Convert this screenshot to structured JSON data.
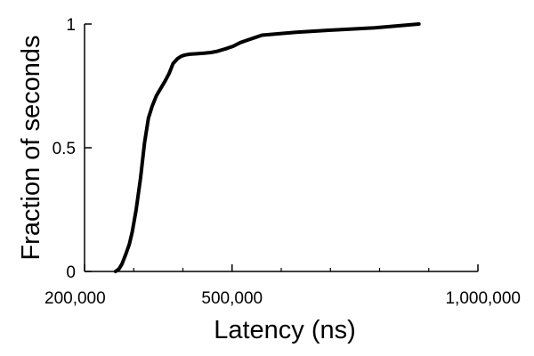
{
  "chart_data": {
    "type": "line",
    "title": "",
    "xlabel": "Latency (ns)",
    "ylabel": "Fraction of seconds",
    "xlim": [
      200000,
      1000000
    ],
    "ylim": [
      0,
      1
    ],
    "x_ticks": [
      {
        "value": 200000,
        "label": "200,000"
      },
      {
        "value": 500000,
        "label": "500,000"
      },
      {
        "value": 1000000,
        "label": "1,000,000"
      }
    ],
    "x_minor_ticks": [
      300000,
      400000,
      600000,
      700000,
      800000,
      900000
    ],
    "y_ticks": [
      {
        "value": 0,
        "label": "0"
      },
      {
        "value": 0.5,
        "label": "0.5"
      },
      {
        "value": 1,
        "label": "1"
      }
    ],
    "grid": false,
    "legend": "none",
    "line_color": "#000000",
    "series": [
      {
        "x": [
          263000,
          270000,
          276000,
          284000,
          291000,
          297000,
          305000,
          314000,
          322000,
          330000,
          338000,
          346000,
          355000,
          364000,
          372000,
          380000,
          389000,
          397000,
          404000,
          414000,
          428000,
          443000,
          457000,
          470000,
          487000,
          502000,
          517000,
          531000,
          546000,
          561000,
          590000,
          630000,
          700000,
          790000,
          880000
        ],
        "y": [
          0,
          0.01,
          0.03,
          0.07,
          0.11,
          0.16,
          0.25,
          0.38,
          0.52,
          0.62,
          0.67,
          0.71,
          0.74,
          0.77,
          0.8,
          0.84,
          0.86,
          0.87,
          0.875,
          0.878,
          0.88,
          0.882,
          0.885,
          0.89,
          0.9,
          0.91,
          0.925,
          0.935,
          0.945,
          0.955,
          0.96,
          0.967,
          0.975,
          0.985,
          1.0
        ]
      }
    ]
  }
}
